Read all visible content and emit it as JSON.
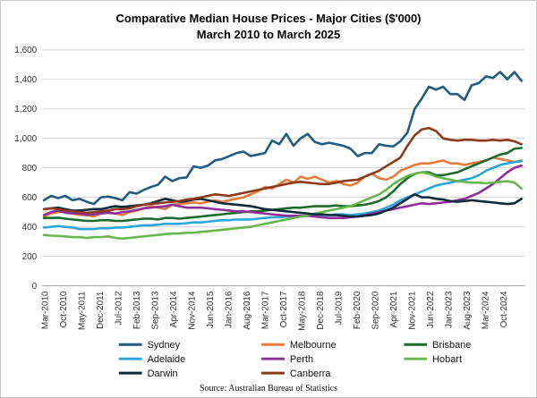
{
  "chart_data": {
    "type": "line",
    "title": "Comparative Median House Prices - Major Cities ($'000)",
    "subtitle": "March 2010 to March 2025",
    "source": "Source: Australian Bureau of Statistics",
    "ylim": [
      0,
      1600
    ],
    "yticks": [
      "0",
      "200",
      "400",
      "600",
      "800",
      "1,000",
      "1,200",
      "1,400",
      "1,600"
    ],
    "ytick_values": [
      0,
      200,
      400,
      600,
      800,
      1000,
      1200,
      1400,
      1600
    ],
    "xlabels": [
      "Mar-2010",
      "Oct-2010",
      "May-2011",
      "Dec-2011",
      "Jul-2012",
      "Feb-2013",
      "Sep-2013",
      "Apr-2014",
      "Nov-2014",
      "Jun-2015",
      "Jan-2016",
      "Aug-2016",
      "Mar-2017",
      "Oct-2017",
      "May-2018",
      "Dec-2018",
      "Jul-2019",
      "Feb-2020",
      "Sep-2020",
      "Apr-2021",
      "Nov-2021",
      "Jun-2022",
      "Jan-2023",
      "Aug-2023",
      "Mar-2024",
      "Oct-2024"
    ],
    "x_start": "Mar-2010",
    "x_end": "Mar-2025",
    "grid": true,
    "series": [
      {
        "name": "Sydney",
        "color": "#1f5c7f",
        "values": [
          580,
          610,
          595,
          610,
          580,
          590,
          570,
          555,
          600,
          605,
          595,
          580,
          635,
          625,
          650,
          670,
          685,
          740,
          710,
          730,
          735,
          810,
          800,
          815,
          850,
          860,
          880,
          900,
          910,
          880,
          890,
          900,
          985,
          960,
          1030,
          950,
          1000,
          1030,
          975,
          960,
          970,
          960,
          950,
          930,
          880,
          900,
          900,
          960,
          950,
          945,
          980,
          1040,
          1200,
          1270,
          1350,
          1330,
          1350,
          1300,
          1300,
          1260,
          1360,
          1375,
          1420,
          1410,
          1450,
          1400,
          1450,
          1390
        ]
      },
      {
        "name": "Melbourne",
        "color": "#e87b38",
        "values": [
          470,
          490,
          500,
          505,
          490,
          480,
          480,
          470,
          490,
          500,
          490,
          480,
          500,
          510,
          525,
          540,
          530,
          520,
          550,
          555,
          560,
          565,
          560,
          570,
          580,
          570,
          580,
          590,
          600,
          620,
          640,
          670,
          660,
          690,
          720,
          700,
          740,
          725,
          740,
          720,
          700,
          710,
          690,
          680,
          700,
          740,
          760,
          730,
          720,
          740,
          780,
          800,
          820,
          830,
          830,
          840,
          850,
          830,
          830,
          820,
          830,
          840,
          850,
          870,
          860,
          850,
          840,
          850
        ]
      },
      {
        "name": "Brisbane",
        "color": "#1a6b2c",
        "values": [
          460,
          460,
          462,
          455,
          450,
          445,
          440,
          440,
          445,
          445,
          440,
          440,
          445,
          450,
          455,
          455,
          450,
          460,
          460,
          455,
          460,
          465,
          470,
          475,
          480,
          485,
          490,
          495,
          500,
          505,
          505,
          510,
          515,
          520,
          525,
          530,
          530,
          535,
          540,
          540,
          540,
          545,
          540,
          540,
          545,
          550,
          560,
          575,
          600,
          640,
          690,
          730,
          760,
          770,
          770,
          750,
          750,
          760,
          770,
          790,
          810,
          830,
          850,
          870,
          890,
          900,
          930,
          935
        ]
      },
      {
        "name": "Adelaide",
        "color": "#2aa5db",
        "values": [
          395,
          400,
          405,
          400,
          395,
          385,
          385,
          385,
          390,
          390,
          395,
          395,
          400,
          405,
          410,
          410,
          415,
          420,
          420,
          420,
          425,
          430,
          430,
          435,
          440,
          445,
          445,
          450,
          450,
          450,
          455,
          460,
          465,
          465,
          470,
          470,
          470,
          475,
          475,
          480,
          480,
          485,
          485,
          480,
          485,
          490,
          500,
          510,
          530,
          550,
          580,
          600,
          620,
          640,
          660,
          680,
          690,
          700,
          710,
          720,
          730,
          750,
          780,
          800,
          820,
          830,
          840,
          845
        ]
      },
      {
        "name": "Perth",
        "color": "#8e2f9a",
        "values": [
          480,
          500,
          510,
          495,
          490,
          490,
          480,
          485,
          490,
          495,
          490,
          500,
          505,
          515,
          525,
          530,
          535,
          540,
          550,
          540,
          530,
          530,
          530,
          525,
          520,
          515,
          510,
          505,
          505,
          500,
          495,
          490,
          485,
          480,
          475,
          475,
          475,
          475,
          470,
          465,
          460,
          460,
          460,
          465,
          470,
          480,
          490,
          500,
          510,
          520,
          530,
          540,
          550,
          560,
          555,
          560,
          565,
          570,
          580,
          590,
          610,
          630,
          660,
          690,
          730,
          770,
          800,
          815
        ]
      },
      {
        "name": "Hobart",
        "color": "#66b84a",
        "values": [
          345,
          340,
          338,
          335,
          330,
          330,
          325,
          330,
          330,
          335,
          325,
          320,
          325,
          330,
          335,
          340,
          345,
          350,
          355,
          355,
          360,
          360,
          365,
          370,
          375,
          380,
          385,
          390,
          395,
          400,
          410,
          420,
          430,
          440,
          450,
          460,
          470,
          480,
          490,
          500,
          510,
          520,
          530,
          540,
          560,
          580,
          600,
          620,
          650,
          690,
          720,
          745,
          760,
          770,
          760,
          740,
          730,
          720,
          710,
          705,
          700,
          700,
          695,
          700,
          705,
          710,
          700,
          660
        ]
      },
      {
        "name": "Darwin",
        "color": "#0d2a3a",
        "values": [
          520,
          525,
          530,
          520,
          510,
          510,
          515,
          520,
          520,
          530,
          540,
          535,
          540,
          545,
          550,
          560,
          575,
          590,
          580,
          570,
          575,
          585,
          590,
          580,
          570,
          560,
          555,
          550,
          545,
          540,
          530,
          520,
          515,
          510,
          505,
          500,
          495,
          490,
          485,
          485,
          480,
          480,
          475,
          470,
          470,
          475,
          480,
          490,
          510,
          530,
          560,
          590,
          620,
          600,
          600,
          590,
          585,
          575,
          570,
          575,
          580,
          575,
          570,
          565,
          560,
          555,
          560,
          590
        ]
      },
      {
        "name": "Canberra",
        "color": "#8b3a1a",
        "values": [
          520,
          525,
          520,
          510,
          505,
          500,
          495,
          500,
          505,
          510,
          520,
          520,
          525,
          540,
          550,
          555,
          560,
          565,
          570,
          575,
          585,
          590,
          600,
          610,
          620,
          615,
          610,
          620,
          630,
          640,
          650,
          660,
          670,
          680,
          690,
          700,
          705,
          700,
          695,
          690,
          690,
          700,
          710,
          715,
          720,
          740,
          760,
          780,
          810,
          840,
          870,
          950,
          1020,
          1060,
          1070,
          1050,
          1000,
          990,
          985,
          990,
          990,
          985,
          985,
          990,
          985,
          990,
          980,
          960
        ]
      }
    ]
  },
  "legend": [
    {
      "name": "Sydney",
      "color": "#1f5c7f"
    },
    {
      "name": "Melbourne",
      "color": "#e87b38"
    },
    {
      "name": "Brisbane",
      "color": "#1a6b2c"
    },
    {
      "name": "Adelaide",
      "color": "#2aa5db"
    },
    {
      "name": "Perth",
      "color": "#8e2f9a"
    },
    {
      "name": "Hobart",
      "color": "#66b84a"
    },
    {
      "name": "Darwin",
      "color": "#0d2a3a"
    },
    {
      "name": "Canberra",
      "color": "#8b3a1a"
    }
  ]
}
